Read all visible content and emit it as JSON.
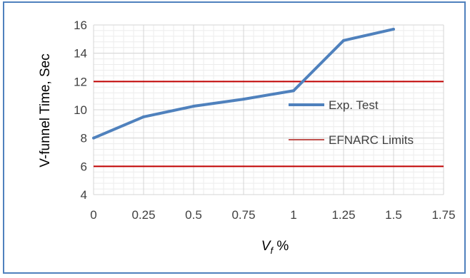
{
  "chart_data": {
    "type": "line",
    "xlabel_main": "V",
    "xlabel_sub": "f",
    "xlabel_rest": " %",
    "ylabel": "V-funnel Time, Sec",
    "xlim": [
      0,
      1.75
    ],
    "ylim": [
      4,
      16
    ],
    "x_ticks": [
      "0",
      "0.25",
      "0.5",
      "0.75",
      "1",
      "1.25",
      "1.5",
      "1.75"
    ],
    "y_ticks": [
      "4",
      "6",
      "8",
      "10",
      "12",
      "14",
      "16"
    ],
    "grid": true,
    "legend_position": "right",
    "series": [
      {
        "name": "Exp. Test",
        "color": "#4f81bd",
        "x": [
          0,
          0.25,
          0.5,
          0.75,
          1,
          1.25,
          1.5
        ],
        "y": [
          8.0,
          9.5,
          10.25,
          10.75,
          11.35,
          14.9,
          15.7
        ]
      }
    ],
    "limits": {
      "name": "EFNARC Limits",
      "color": "#c00000",
      "values": [
        6,
        12
      ]
    }
  }
}
